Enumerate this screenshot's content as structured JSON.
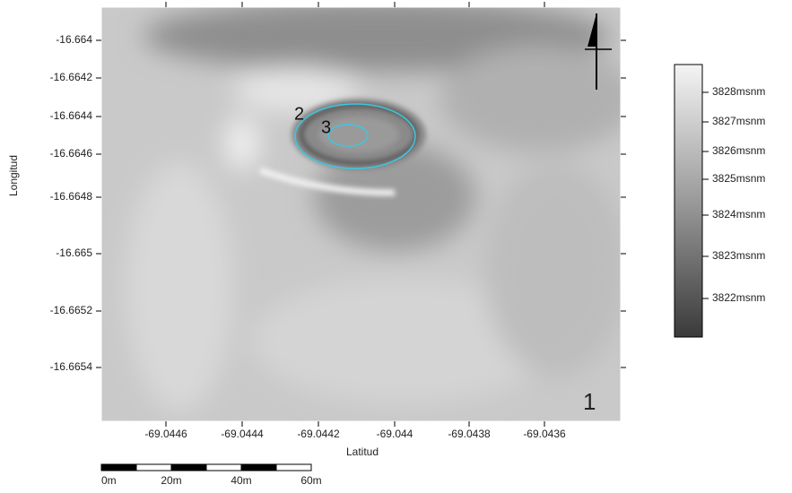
{
  "map": {
    "x_axis": {
      "label": "Latitud",
      "ticks": [
        "-69.0446",
        "-69.0444",
        "-69.0442",
        "-69.044",
        "-69.0438",
        "-69.0436"
      ]
    },
    "y_axis": {
      "label": "Longitud",
      "ticks": [
        "-16.664",
        "-16.6642",
        "-16.6644",
        "-16.6646",
        "-16.6648",
        "-16.665",
        "-16.6652",
        "-16.6654"
      ]
    },
    "legend": {
      "labels": [
        "3828msnm",
        "3827msnm",
        "3826msnm",
        "3825msnm",
        "3824msnm",
        "3823msnm",
        "3822msnm"
      ]
    },
    "scale_bar": {
      "labels": [
        "0m",
        "20m",
        "40m",
        "60m"
      ]
    },
    "markers": [
      "1",
      "2",
      "3"
    ]
  }
}
